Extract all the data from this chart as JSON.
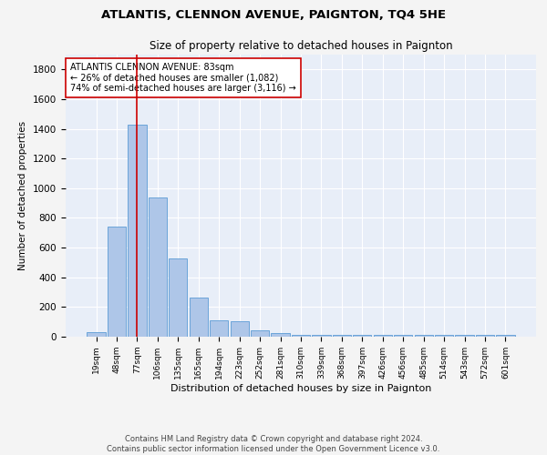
{
  "title": "ATLANTIS, CLENNON AVENUE, PAIGNTON, TQ4 5HE",
  "subtitle": "Size of property relative to detached houses in Paignton",
  "xlabel": "Distribution of detached houses by size in Paignton",
  "ylabel": "Number of detached properties",
  "categories": [
    "19sqm",
    "48sqm",
    "77sqm",
    "106sqm",
    "135sqm",
    "165sqm",
    "194sqm",
    "223sqm",
    "252sqm",
    "281sqm",
    "310sqm",
    "339sqm",
    "368sqm",
    "397sqm",
    "426sqm",
    "456sqm",
    "485sqm",
    "514sqm",
    "543sqm",
    "572sqm",
    "601sqm"
  ],
  "values": [
    30,
    740,
    1430,
    940,
    530,
    265,
    110,
    105,
    45,
    25,
    10,
    10,
    10,
    10,
    10,
    15,
    10,
    10,
    10,
    10,
    10
  ],
  "bar_color": "#aec6e8",
  "bar_edge_color": "#5b9bd5",
  "bg_color": "#e8eef8",
  "grid_color": "#ffffff",
  "fig_bg_color": "#f4f4f4",
  "vline_x_index": 2,
  "vline_color": "#cc0000",
  "annotation_text": "ATLANTIS CLENNON AVENUE: 83sqm\n← 26% of detached houses are smaller (1,082)\n74% of semi-detached houses are larger (3,116) →",
  "annotation_box_color": "#ffffff",
  "annotation_box_edge": "#cc0000",
  "footer_line1": "Contains HM Land Registry data © Crown copyright and database right 2024.",
  "footer_line2": "Contains public sector information licensed under the Open Government Licence v3.0.",
  "ylim": [
    0,
    1900
  ],
  "yticks": [
    0,
    200,
    400,
    600,
    800,
    1000,
    1200,
    1400,
    1600,
    1800
  ]
}
